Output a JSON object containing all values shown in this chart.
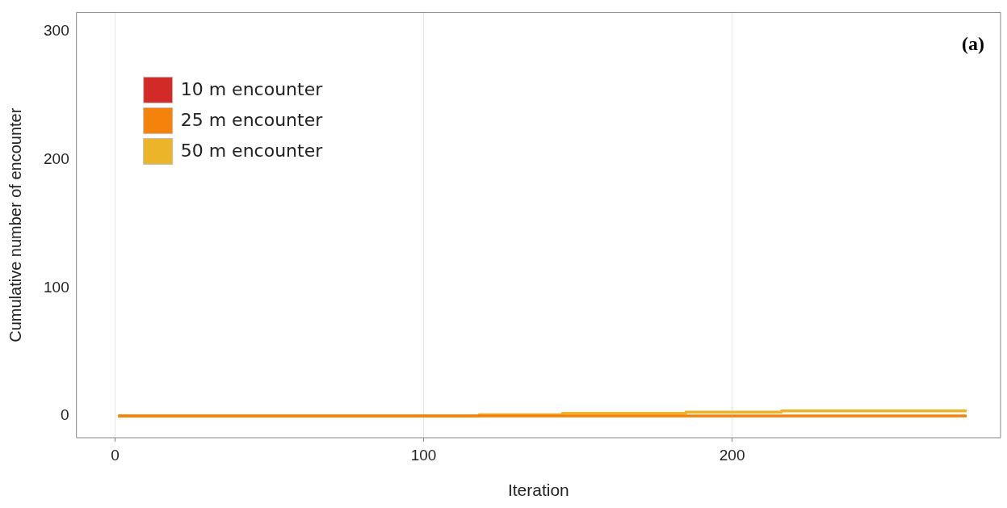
{
  "chart_data": {
    "type": "step",
    "xlabel": "Iteration",
    "ylabel": "Cumulative number of encounter",
    "annotations": [
      "(a)"
    ],
    "xlim": [
      -12.5,
      287
    ],
    "xticks": [
      0,
      100,
      200
    ],
    "ylim": [
      -17,
      315
    ],
    "yticks": [
      0,
      100,
      200,
      300
    ],
    "grid": "x",
    "legend": "top left",
    "series": [
      {
        "name": "10 m encounter",
        "color": "#d12a27"
      },
      {
        "name": "25 m encounter",
        "color": "#f5820a",
        "x": [
          1,
          118,
          145,
          185,
          216,
          276
        ],
        "values": [
          0,
          0,
          0,
          0,
          0,
          0
        ]
      },
      {
        "name": "50 m encounter",
        "color": "#ecb428",
        "x": [
          1,
          118,
          145,
          185,
          216,
          276
        ],
        "values": [
          0,
          1,
          2,
          3,
          4,
          4
        ]
      }
    ]
  }
}
